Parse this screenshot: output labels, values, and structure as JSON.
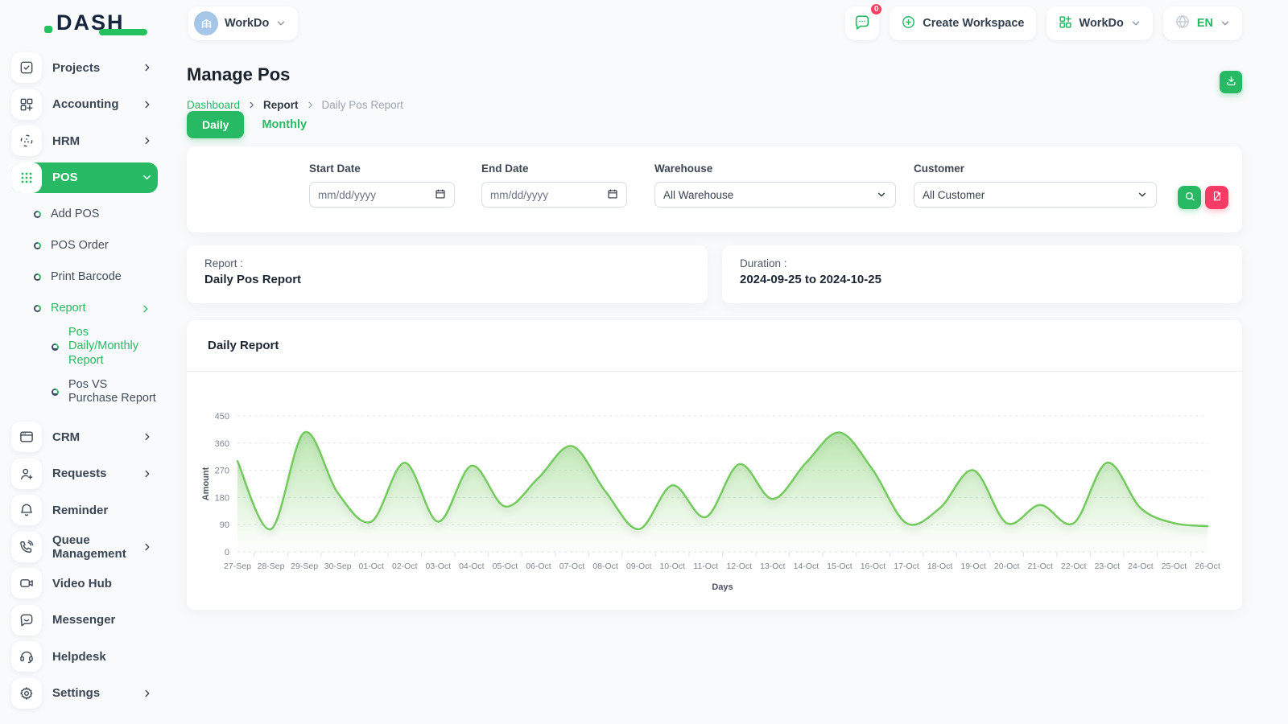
{
  "colors": {
    "accent_green": "#28b964",
    "chart_line": "#72cb5c",
    "chart_fill_top": "rgba(118,205,96,0.50)",
    "chart_fill_bottom": "rgba(118,205,96,0.04)",
    "pink": "#f63c64",
    "badge_red": "#fd3e60",
    "logo_navy": "#16243d"
  },
  "topbar": {
    "logo_text": "DASH",
    "workspace_switcher": {
      "label": "WorkDo",
      "icon": "building-icon"
    },
    "messages": {
      "icon": "chat-icon",
      "badge": "0"
    },
    "create_workspace": {
      "label": "Create Workspace",
      "icon": "plus-circle-icon"
    },
    "workspace_menu": {
      "label": "WorkDo",
      "icon": "grid-plus-icon"
    },
    "language": {
      "label": "EN",
      "icon": "globe-icon"
    }
  },
  "sidebar": {
    "items": [
      {
        "label": "Projects",
        "icon": "check-square-icon",
        "chevron": "right"
      },
      {
        "label": "Accounting",
        "icon": "layout-plus-icon",
        "chevron": "right"
      },
      {
        "label": "HRM",
        "icon": "focus-dots-icon",
        "chevron": "right"
      },
      {
        "label": "POS",
        "icon": "dot-grid-icon",
        "chevron": "down",
        "active": true,
        "children": [
          {
            "label": "Add POS"
          },
          {
            "label": "POS Order"
          },
          {
            "label": "Print Barcode"
          },
          {
            "label": "Report",
            "active": true,
            "chevron": "right",
            "children": [
              {
                "label": "Pos Daily/Monthly Report",
                "active": true
              },
              {
                "label": "Pos VS Purchase Report"
              }
            ]
          }
        ]
      },
      {
        "label": "CRM",
        "icon": "browser-icon",
        "chevron": "right"
      },
      {
        "label": "Requests",
        "icon": "user-plus-icon",
        "chevron": "right"
      },
      {
        "label": "Reminder",
        "icon": "bell-icon"
      },
      {
        "label": "Queue Management",
        "icon": "phone-call-icon",
        "chevron": "right"
      },
      {
        "label": "Video Hub",
        "icon": "video-icon"
      },
      {
        "label": "Messenger",
        "icon": "message-icon"
      },
      {
        "label": "Helpdesk",
        "icon": "headset-icon"
      },
      {
        "label": "Settings",
        "icon": "gear-icon",
        "chevron": "right"
      }
    ]
  },
  "page": {
    "title": "Manage Pos",
    "breadcrumb": [
      {
        "label": "Dashboard"
      },
      {
        "label": "Report"
      },
      {
        "label": "Daily Pos Report"
      }
    ]
  },
  "tabs": {
    "daily": "Daily",
    "monthly": "Monthly",
    "active": "Daily"
  },
  "filters": {
    "start_date": {
      "label": "Start Date",
      "placeholder": "mm/dd/yyyy"
    },
    "end_date": {
      "label": "End Date",
      "placeholder": "mm/dd/yyyy"
    },
    "warehouse": {
      "label": "Warehouse",
      "value": "All Warehouse"
    },
    "customer": {
      "label": "Customer",
      "value": "All Customer"
    }
  },
  "summary": {
    "report": {
      "label": "Report :",
      "value": "Daily Pos Report"
    },
    "duration": {
      "label": "Duration :",
      "value": "2024-09-25 to 2024-10-25"
    }
  },
  "chart_data": {
    "type": "area",
    "title": "Daily Report",
    "xlabel": "Days",
    "ylabel": "Amount",
    "ylim": [
      0,
      450
    ],
    "ytick_step": 90,
    "grid": true,
    "legend": false,
    "categories": [
      "27-Sep",
      "28-Sep",
      "29-Sep",
      "30-Sep",
      "01-Oct",
      "02-Oct",
      "03-Oct",
      "04-Oct",
      "05-Oct",
      "06-Oct",
      "07-Oct",
      "08-Oct",
      "09-Oct",
      "10-Oct",
      "11-Oct",
      "12-Oct",
      "13-Oct",
      "14-Oct",
      "15-Oct",
      "16-Oct",
      "17-Oct",
      "18-Oct",
      "19-Oct",
      "20-Oct",
      "21-Oct",
      "22-Oct",
      "23-Oct",
      "24-Oct",
      "25-Oct",
      "26-Oct"
    ],
    "series": [
      {
        "name": "Amount",
        "values": [
          300,
          75,
          395,
          195,
          100,
          295,
          100,
          285,
          150,
          245,
          350,
          200,
          75,
          220,
          115,
          290,
          175,
          295,
          395,
          270,
          95,
          145,
          270,
          95,
          155,
          95,
          295,
          145,
          95,
          85
        ]
      }
    ]
  }
}
